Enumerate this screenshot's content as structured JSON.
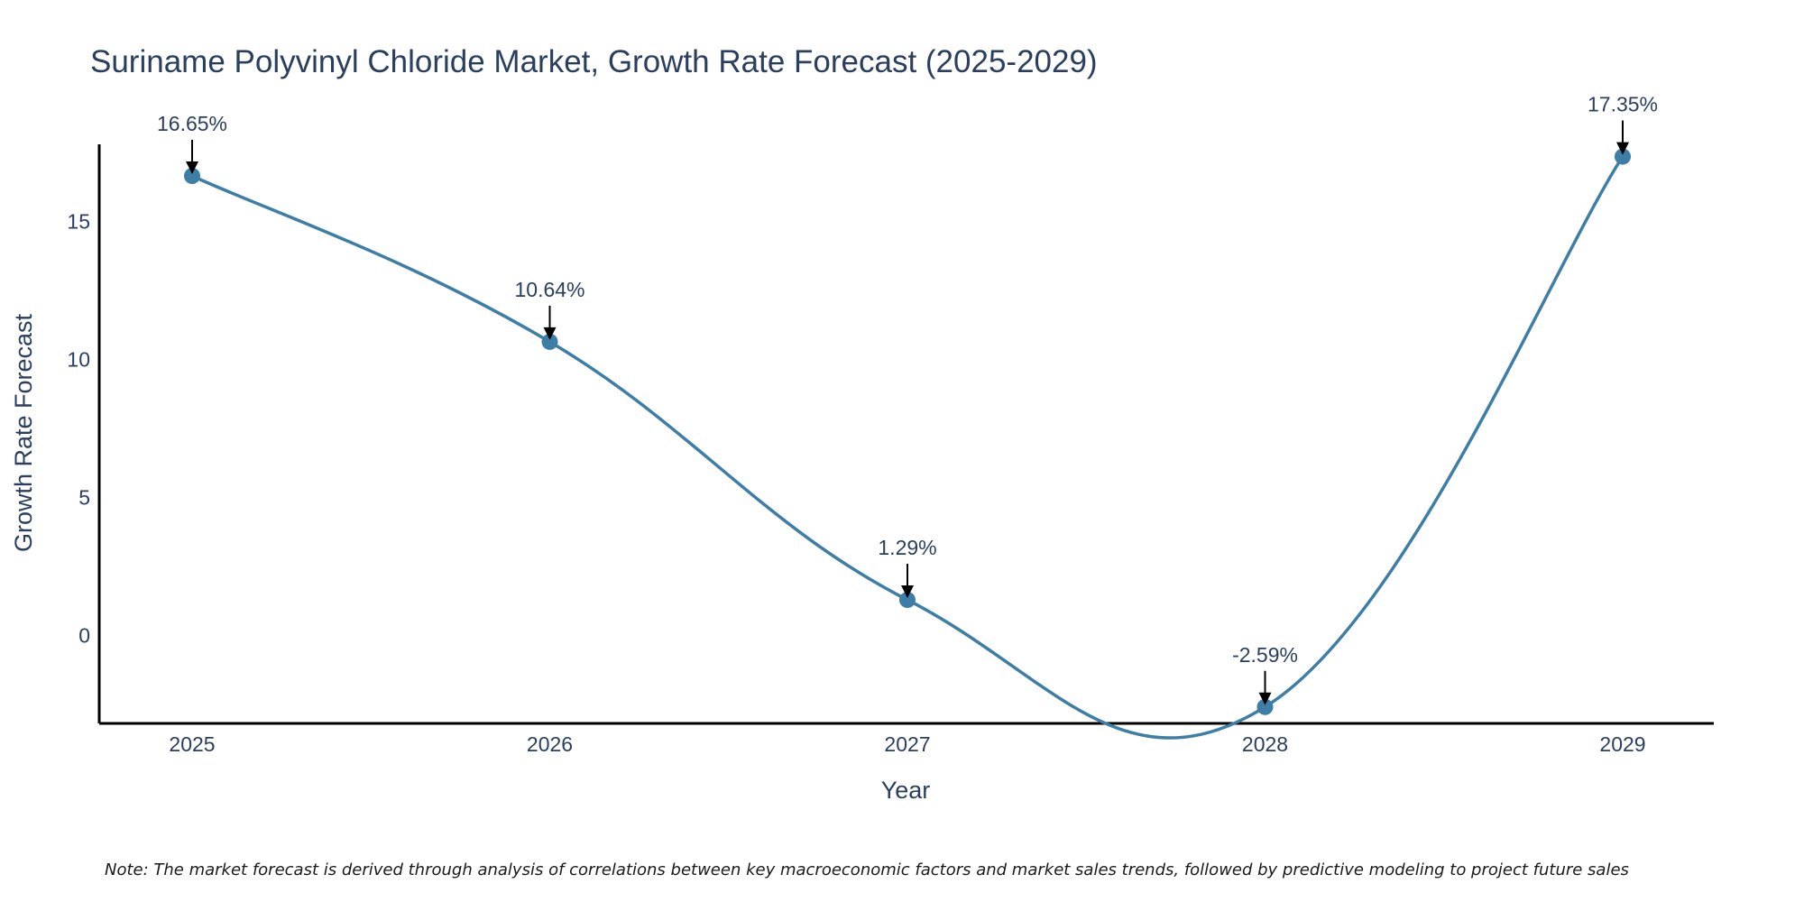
{
  "chart_data": {
    "type": "line",
    "title": "Suriname Polyvinyl Chloride Market, Growth Rate Forecast (2025-2029)",
    "xlabel": "Year",
    "ylabel": "Growth Rate Forecast",
    "categories": [
      "2025",
      "2026",
      "2027",
      "2028",
      "2029"
    ],
    "series": [
      {
        "name": "Growth Rate Forecast",
        "values": [
          16.65,
          10.64,
          1.29,
          -2.59,
          17.35
        ],
        "labels": [
          "16.65%",
          "10.64%",
          "1.29%",
          "-2.59%",
          "17.35%"
        ],
        "color": "#3d7ea6"
      }
    ],
    "yticks": [
      0,
      5,
      10,
      15
    ],
    "ytick_labels": [
      "0",
      "5",
      "10",
      "15"
    ],
    "ylim": [
      -3.2,
      17.8
    ],
    "grid": false,
    "line_shape": "spline",
    "note": "Note: The market forecast is derived through analysis of correlations between key macroeconomic factors and market sales trends, followed by predictive modeling to project future sales"
  }
}
